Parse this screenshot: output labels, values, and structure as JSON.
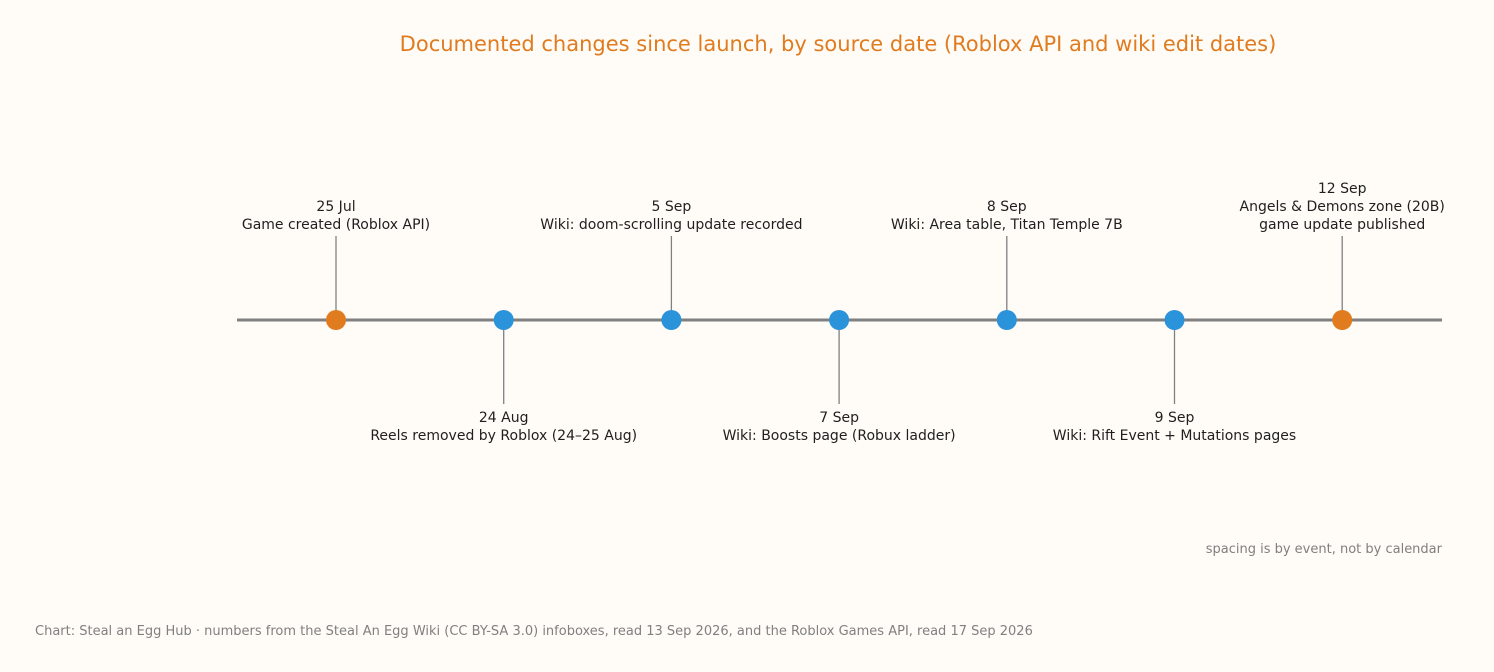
{
  "chart_data": {
    "type": "timeline",
    "title": "Documented changes since launch, by source date (Roblox API and wiki edit dates)",
    "note": "spacing is by event, not by calendar",
    "source": "Chart: Steal an Egg Hub · numbers from the Steal An Egg Wiki (CC BY-SA 3.0) infoboxes, read 13 Sep 2026, and the Roblox Games API, read 17 Sep 2026",
    "colors": {
      "title": "#e07b1f",
      "roblox": "#e07b1f",
      "wiki": "#2b93d9",
      "axis": "#808080",
      "background": "#fffcf7"
    },
    "events": [
      {
        "date": "25 Jul",
        "lines": [
          "Game created (Roblox API)"
        ],
        "kind": "roblox",
        "side": "above"
      },
      {
        "date": "24 Aug",
        "lines": [
          "Reels removed by Roblox (24–25 Aug)"
        ],
        "kind": "wiki",
        "side": "below"
      },
      {
        "date": "5 Sep",
        "lines": [
          "Wiki: doom-scrolling update recorded"
        ],
        "kind": "wiki",
        "side": "above"
      },
      {
        "date": "7 Sep",
        "lines": [
          "Wiki: Boosts page (Robux ladder)"
        ],
        "kind": "wiki",
        "side": "below"
      },
      {
        "date": "8 Sep",
        "lines": [
          "Wiki: Area table, Titan Temple 7B"
        ],
        "kind": "wiki",
        "side": "above"
      },
      {
        "date": "9 Sep",
        "lines": [
          "Wiki: Rift Event + Mutations pages"
        ],
        "kind": "wiki",
        "side": "below"
      },
      {
        "date": "12 Sep",
        "lines": [
          "Angels & Demons zone (20B)",
          "game update published"
        ],
        "kind": "roblox",
        "side": "above"
      }
    ]
  }
}
